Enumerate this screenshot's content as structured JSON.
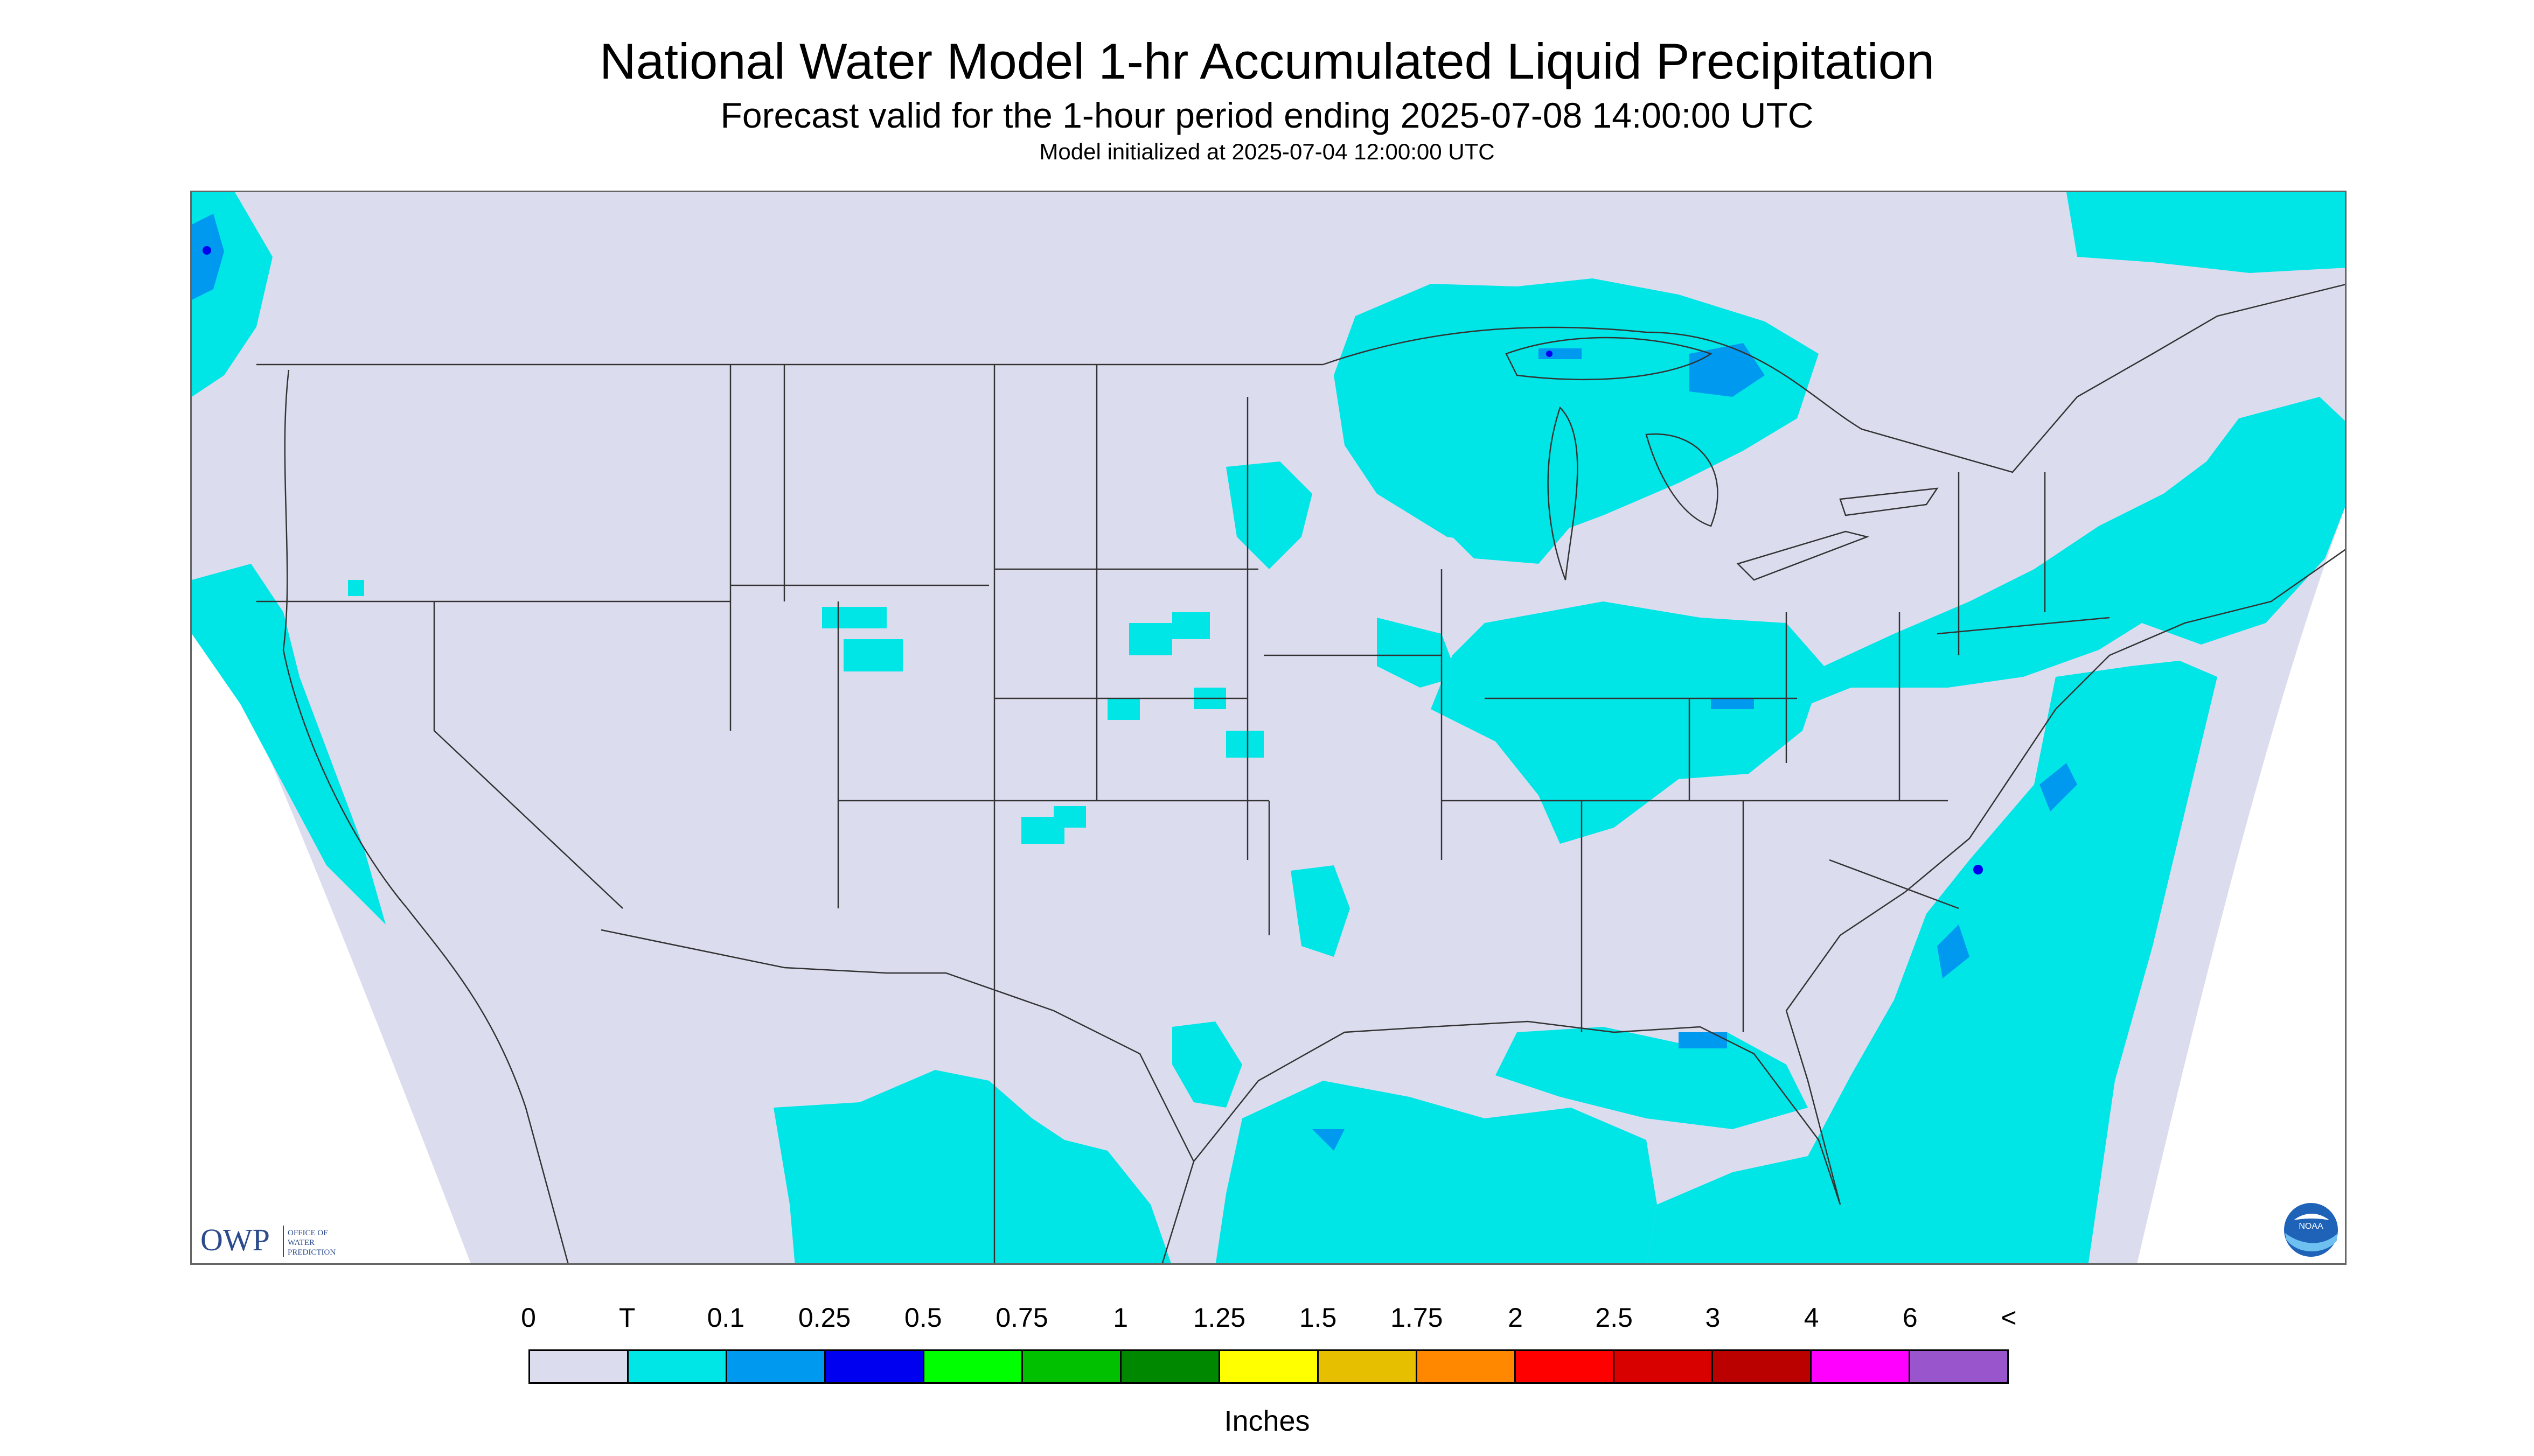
{
  "title": "National Water Model 1-hr Accumulated Liquid Precipitation",
  "subtitle": "Forecast valid for the 1-hour period ending 2025-07-08 14:00:00 UTC",
  "init_line": "Model initialized at 2025-07-04 12:00:00 UTC",
  "logos": {
    "owp_abbrev": "OWP",
    "owp_name": "OFFICE OF WATER PREDICTION",
    "noaa_text": "NOAA"
  },
  "legend": {
    "labels": [
      "0",
      "T",
      "0.1",
      "0.25",
      "0.5",
      "0.75",
      "1",
      "1.25",
      "1.5",
      "1.75",
      "2",
      "2.5",
      "3",
      "4",
      "6",
      "<"
    ],
    "colors": [
      "#dcdcef",
      "#00e5e5",
      "#0099f0",
      "#0000f0",
      "#00ff00",
      "#00c000",
      "#008800",
      "#ffff00",
      "#e6c000",
      "#ff8800",
      "#ff0000",
      "#d90000",
      "#bb0000",
      "#ff00ff",
      "#9955cc"
    ],
    "units": "Inches"
  },
  "map_colors": {
    "domain_fill": "#dcdcef",
    "outside_fill": "#ffffff",
    "trace_precip": "#00e5e5",
    "light_precip": "#0099f0",
    "moderate_precip": "#0000f0",
    "boundaries": "#333333"
  }
}
